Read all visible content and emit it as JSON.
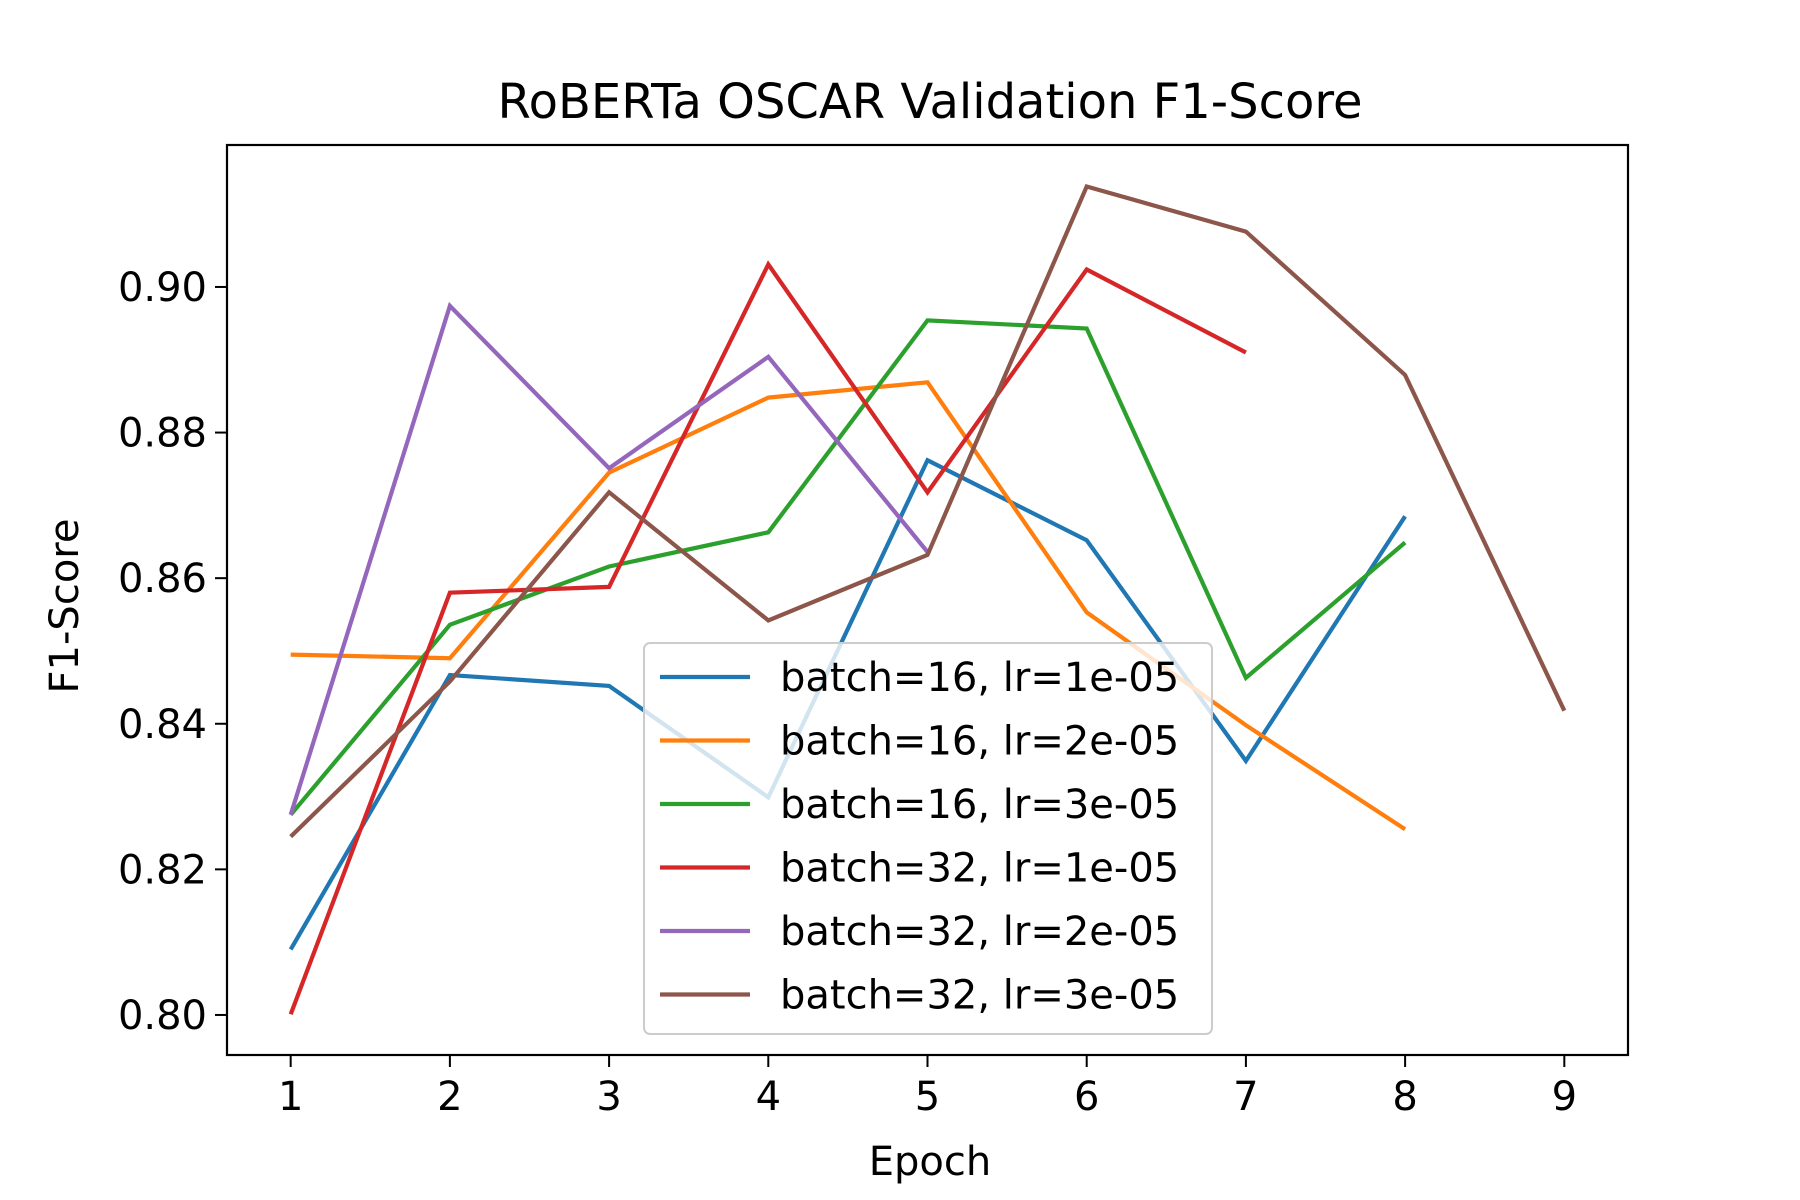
{
  "chart_data": {
    "type": "line",
    "title": "RoBERTa OSCAR Validation F1-Score",
    "xlabel": "Epoch",
    "ylabel": "F1-Score",
    "xlim": [
      0.6,
      9.4
    ],
    "ylim": [
      0.7945,
      0.9195
    ],
    "xticks": [
      1,
      2,
      3,
      4,
      5,
      6,
      7,
      8,
      9
    ],
    "xtick_labels": [
      "1",
      "2",
      "3",
      "4",
      "5",
      "6",
      "7",
      "8",
      "9"
    ],
    "yticks": [
      0.8,
      0.82,
      0.84,
      0.86,
      0.88,
      0.9
    ],
    "ytick_labels": [
      "0.80",
      "0.82",
      "0.84",
      "0.86",
      "0.88",
      "0.90"
    ],
    "grid": false,
    "legend_position": "lower-center",
    "series": [
      {
        "name": "batch=16, lr=1e-05",
        "color": "#1f77b4",
        "x": [
          1,
          2,
          3,
          4,
          5,
          6,
          7,
          8
        ],
        "y": [
          0.809,
          0.8467,
          0.8452,
          0.8299,
          0.8762,
          0.8652,
          0.8349,
          0.8685
        ]
      },
      {
        "name": "batch=16, lr=2e-05",
        "color": "#ff7f0e",
        "x": [
          1,
          2,
          3,
          4,
          5,
          6,
          7,
          8
        ],
        "y": [
          0.8495,
          0.849,
          0.8745,
          0.8848,
          0.8869,
          0.8553,
          0.8398,
          0.8255
        ]
      },
      {
        "name": "batch=16, lr=3e-05",
        "color": "#2ca02c",
        "x": [
          1,
          2,
          3,
          4,
          5,
          6,
          7,
          8
        ],
        "y": [
          0.8275,
          0.8536,
          0.8616,
          0.8663,
          0.8954,
          0.8943,
          0.8463,
          0.8649
        ]
      },
      {
        "name": "batch=32, lr=1e-05",
        "color": "#d62728",
        "x": [
          1,
          2,
          3,
          4,
          5,
          6,
          7
        ],
        "y": [
          0.8001,
          0.858,
          0.8588,
          0.9031,
          0.8718,
          0.9024,
          0.891
        ]
      },
      {
        "name": "batch=32, lr=2e-05",
        "color": "#9467bd",
        "x": [
          1,
          2,
          3,
          4,
          5
        ],
        "y": [
          0.8275,
          0.8974,
          0.8751,
          0.8904,
          0.8636
        ]
      },
      {
        "name": "batch=32, lr=3e-05",
        "color": "#8c564b",
        "x": [
          1,
          2,
          3,
          4,
          5,
          6,
          7,
          8,
          9
        ],
        "y": [
          0.8245,
          0.8458,
          0.8718,
          0.8542,
          0.8632,
          0.9138,
          0.9076,
          0.8879,
          0.8418
        ]
      }
    ]
  }
}
